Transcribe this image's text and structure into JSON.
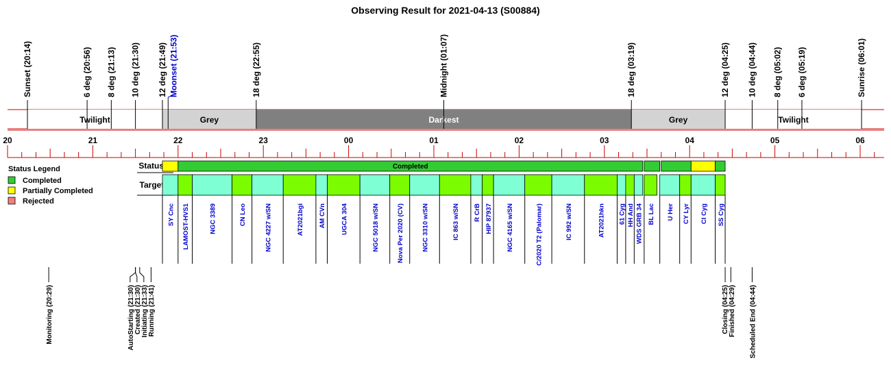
{
  "chart_data": {
    "type": "timeline",
    "title": "Observing Result for 2021-04-13 (S00884)",
    "hour_ticks": [
      "20",
      "21",
      "22",
      "23",
      "00",
      "01",
      "02",
      "03",
      "04",
      "05",
      "06"
    ],
    "sky_events": [
      {
        "label": "Sunset (20:14)",
        "time": "20:14",
        "color": "#000000"
      },
      {
        "label": "6 deg (20:56)",
        "time": "20:56",
        "color": "#000000"
      },
      {
        "label": "8 deg (21:13)",
        "time": "21:13",
        "color": "#000000"
      },
      {
        "label": "10 deg (21:30)",
        "time": "21:30",
        "color": "#000000"
      },
      {
        "label": "12 deg (21:49)",
        "time": "21:49",
        "color": "#000000"
      },
      {
        "label": "Moonset (21:53)",
        "time": "21:53",
        "color": "#0000cc"
      },
      {
        "label": "18 deg (22:55)",
        "time": "22:55",
        "color": "#000000"
      },
      {
        "label": "Midnight (01:07)",
        "time": "01:07",
        "color": "#000000"
      },
      {
        "label": "18 deg (03:19)",
        "time": "03:19",
        "color": "#000000"
      },
      {
        "label": "12 deg (04:25)",
        "time": "04:25",
        "color": "#000000"
      },
      {
        "label": "10 deg (04:44)",
        "time": "04:44",
        "color": "#000000"
      },
      {
        "label": "8 deg (05:02)",
        "time": "05:02",
        "color": "#000000"
      },
      {
        "label": "6 deg (05:19)",
        "time": "05:19",
        "color": "#000000"
      },
      {
        "label": "Sunrise (06:01)",
        "time": "06:01",
        "color": "#000000"
      }
    ],
    "sky_bands": [
      {
        "label": "Twilight",
        "start": "20:14",
        "end": "21:49",
        "color": "#ffffff",
        "text_color": "#000000"
      },
      {
        "label": "Grey",
        "start": "21:49",
        "end": "22:55",
        "color": "#d3d3d3",
        "text_color": "#000000"
      },
      {
        "label": "Darkest",
        "start": "22:55",
        "end": "03:19",
        "color": "#808080",
        "text_color": "#ffffff"
      },
      {
        "label": "Grey",
        "start": "03:19",
        "end": "04:25",
        "color": "#d3d3d3",
        "text_color": "#000000"
      },
      {
        "label": "Twilight",
        "start": "04:25",
        "end": "06:01",
        "color": "#ffffff",
        "text_color": "#000000"
      }
    ],
    "status_row_label": "Status",
    "targets_row_label": "Targets",
    "status_segments": [
      {
        "start": "21:49",
        "end": "22:00",
        "status": "Partially Completed",
        "color": "#ffff00"
      },
      {
        "start": "22:00",
        "end": "03:27",
        "status": "Completed",
        "color": "#33cc33"
      },
      {
        "start": "03:28",
        "end": "03:39",
        "status": "Completed",
        "color": "#33cc33"
      },
      {
        "start": "03:40",
        "end": "04:01",
        "status": "Completed",
        "color": "#33cc33"
      },
      {
        "start": "04:01",
        "end": "04:18",
        "status": "Partially Completed",
        "color": "#ffff00"
      },
      {
        "start": "04:18",
        "end": "04:25",
        "status": "Completed",
        "color": "#33cc33"
      }
    ],
    "status_center_label": "Completed",
    "targets": [
      {
        "name": "SY Cnc",
        "start": "21:49",
        "end": "22:00",
        "color": "#7fffd4"
      },
      {
        "name": "LAMOST-HVS1",
        "start": "22:00",
        "end": "22:10",
        "color": "#7cfc00"
      },
      {
        "name": "NGC 3389",
        "start": "22:10",
        "end": "22:38",
        "color": "#7fffd4"
      },
      {
        "name": "CN Leo",
        "start": "22:38",
        "end": "22:52",
        "color": "#7cfc00"
      },
      {
        "name": "NGC 4227 w/SN",
        "start": "22:52",
        "end": "23:14",
        "color": "#7fffd4"
      },
      {
        "name": "AT2021bgi",
        "start": "23:14",
        "end": "23:37",
        "color": "#7cfc00"
      },
      {
        "name": "AM CVn",
        "start": "23:37",
        "end": "23:45",
        "color": "#7fffd4"
      },
      {
        "name": "UGCA 304",
        "start": "23:45",
        "end": "00:08",
        "color": "#7cfc00"
      },
      {
        "name": "NGC 5018 w/SN",
        "start": "00:08",
        "end": "00:29",
        "color": "#7fffd4"
      },
      {
        "name": "Nova Per 2020 (CV)",
        "start": "00:29",
        "end": "00:43",
        "color": "#7cfc00"
      },
      {
        "name": "NGC 3310 w/SN",
        "start": "00:43",
        "end": "01:04",
        "color": "#7fffd4"
      },
      {
        "name": "IC 863 w/SN",
        "start": "01:04",
        "end": "01:26",
        "color": "#7cfc00"
      },
      {
        "name": "R CrB",
        "start": "01:26",
        "end": "01:34",
        "color": "#7fffd4"
      },
      {
        "name": "HIP 87937",
        "start": "01:34",
        "end": "01:42",
        "color": "#7cfc00"
      },
      {
        "name": "NGC 4165 w/SN",
        "start": "01:42",
        "end": "02:04",
        "color": "#7fffd4"
      },
      {
        "name": "C/2020 T2 (Palomar)",
        "start": "02:04",
        "end": "02:23",
        "color": "#7cfc00"
      },
      {
        "name": "IC 992 w/SN",
        "start": "02:23",
        "end": "02:46",
        "color": "#7fffd4"
      },
      {
        "name": "AT2021hkn",
        "start": "02:46",
        "end": "03:09",
        "color": "#7cfc00"
      },
      {
        "name": "61 Cyg",
        "start": "03:09",
        "end": "03:15",
        "color": "#7fffd4"
      },
      {
        "name": "HH And",
        "start": "03:15",
        "end": "03:21",
        "color": "#7cfc00"
      },
      {
        "name": "WDS GRB 34",
        "start": "03:21",
        "end": "03:27",
        "color": "#7fffd4"
      },
      {
        "name": "BL Lac",
        "start": "03:28",
        "end": "03:37",
        "color": "#7cfc00"
      },
      {
        "name": "U Her",
        "start": "03:39",
        "end": "03:53",
        "color": "#7fffd4"
      },
      {
        "name": "CY Lyr",
        "start": "03:53",
        "end": "04:01",
        "color": "#7cfc00"
      },
      {
        "name": "CI Cyg",
        "start": "04:01",
        "end": "04:18",
        "color": "#7fffd4"
      },
      {
        "name": "SS Cyg",
        "start": "04:18",
        "end": "04:25",
        "color": "#7cfc00"
      }
    ],
    "system_events": [
      {
        "label": "Monitoring (20:29)",
        "time": "20:29"
      },
      {
        "label": "AutoStarting (21:30)",
        "time": "21:30"
      },
      {
        "label": "Created (21:30)",
        "time": "21:30"
      },
      {
        "label": "Initiating (21:33)",
        "time": "21:33"
      },
      {
        "label": "Running (21:41)",
        "time": "21:41"
      },
      {
        "label": "Closing (04:25)",
        "time": "04:25"
      },
      {
        "label": "Finished (04:29)",
        "time": "04:29"
      },
      {
        "label": "Scheduled End (04:44)",
        "time": "04:44"
      }
    ],
    "legend": {
      "title": "Status Legend",
      "position": "left",
      "items": [
        {
          "label": "Completed",
          "color": "#33cc33"
        },
        {
          "label": "Partially Completed",
          "color": "#ffff00"
        },
        {
          "label": "Rejected",
          "color": "#f08080"
        }
      ]
    },
    "axis_color": "#cc0000",
    "target_text_color": "#0000cc"
  }
}
